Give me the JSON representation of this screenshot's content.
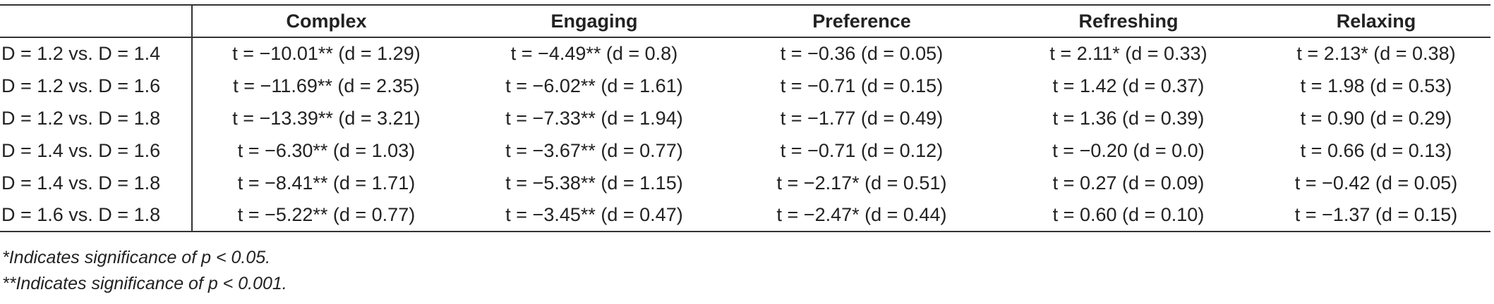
{
  "table": {
    "header": {
      "corner": "",
      "columns": [
        "Complex",
        "Engaging",
        "Preference",
        "Refreshing",
        "Relaxing"
      ]
    },
    "rows": [
      {
        "label": "D = 1.2 vs. D = 1.4",
        "cells": [
          "t = −10.01** (d = 1.29)",
          "t = −4.49** (d = 0.8)",
          "t = −0.36 (d = 0.05)",
          "t = 2.11* (d = 0.33)",
          "t = 2.13* (d = 0.38)"
        ]
      },
      {
        "label": "D = 1.2 vs. D = 1.6",
        "cells": [
          "t = −11.69** (d = 2.35)",
          "t = −6.02** (d = 1.61)",
          "t = −0.71 (d = 0.15)",
          "t = 1.42 (d = 0.37)",
          "t = 1.98 (d = 0.53)"
        ]
      },
      {
        "label": "D = 1.2 vs. D = 1.8",
        "cells": [
          "t = −13.39** (d = 3.21)",
          "t = −7.33** (d = 1.94)",
          "t = −1.77 (d = 0.49)",
          "t = 1.36 (d = 0.39)",
          "t = 0.90 (d = 0.29)"
        ]
      },
      {
        "label": "D = 1.4 vs. D = 1.6",
        "cells": [
          "t = −6.30** (d = 1.03)",
          "t = −3.67** (d = 0.77)",
          "t = −0.71 (d = 0.12)",
          "t = −0.20 (d = 0.0)",
          "t = 0.66 (d = 0.13)"
        ]
      },
      {
        "label": "D = 1.4 vs. D = 1.8",
        "cells": [
          "t = −8.41** (d = 1.71)",
          "t = −5.38** (d = 1.15)",
          "t = −2.17* (d = 0.51)",
          "t = 0.27 (d = 0.09)",
          "t = −0.42 (d = 0.05)"
        ]
      },
      {
        "label": "D = 1.6 vs. D = 1.8",
        "cells": [
          "t = −5.22** (d = 0.77)",
          "t = −3.45** (d = 0.47)",
          "t = −2.47* (d = 0.44)",
          "t = 0.60 (d = 0.10)",
          "t = −1.37 (d = 0.15)"
        ]
      }
    ]
  },
  "footnotes": [
    "*Indicates significance of p < 0.05.",
    "**Indicates significance of p < 0.001."
  ]
}
